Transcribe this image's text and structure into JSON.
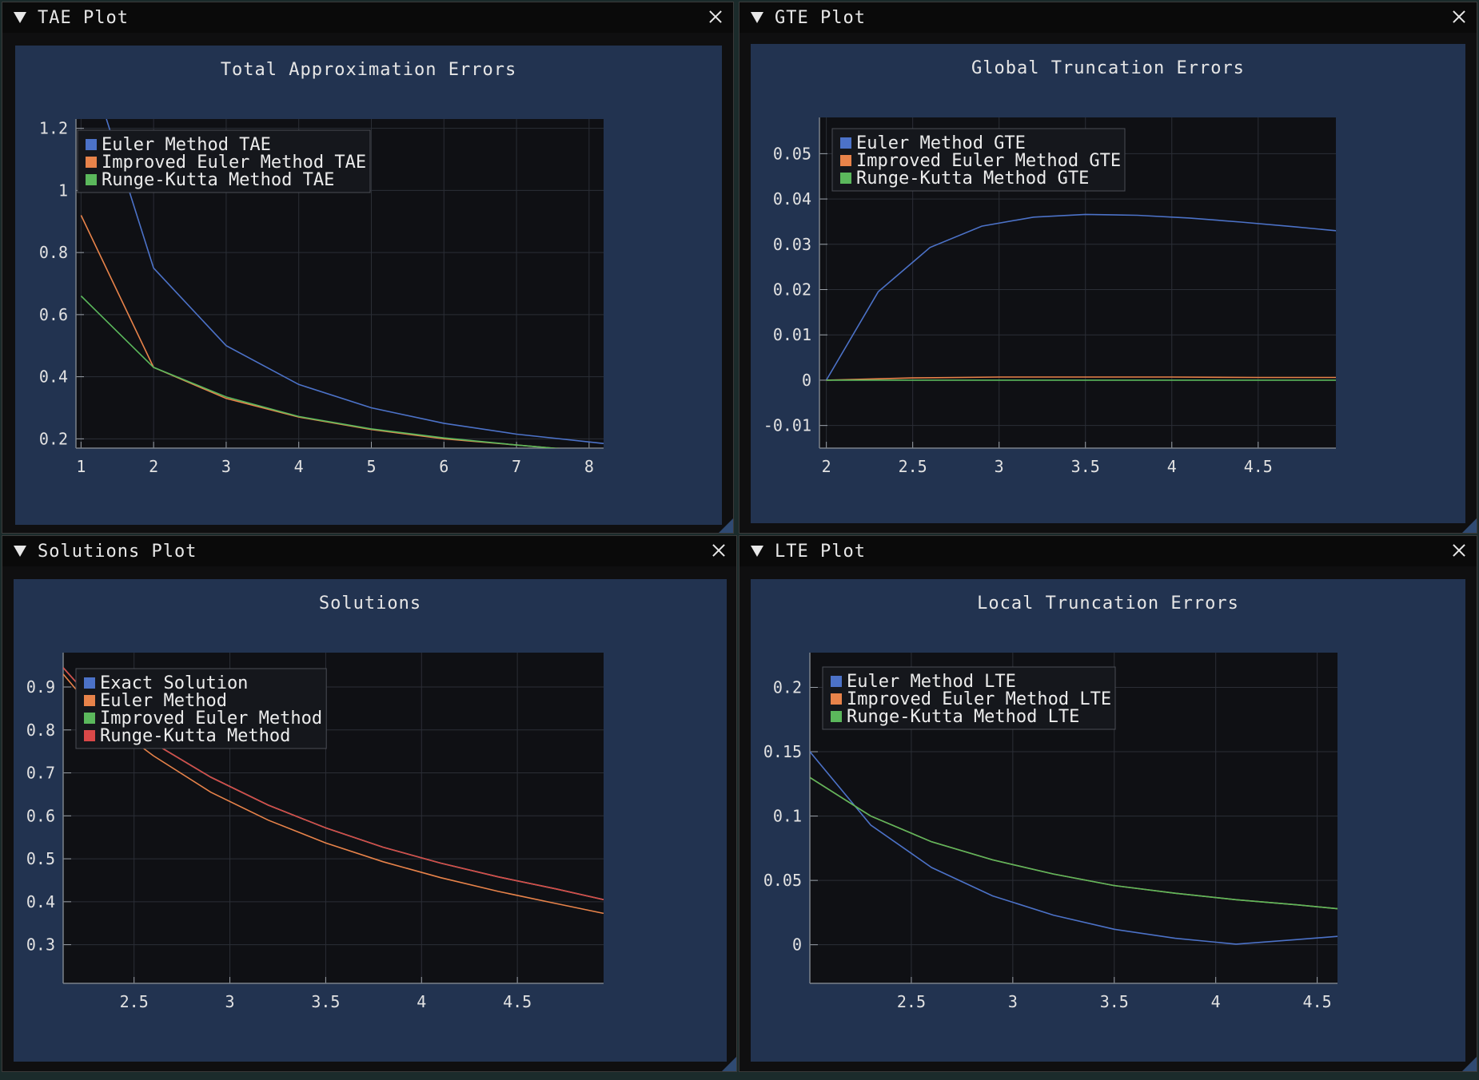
{
  "windows": [
    {
      "id": "tae",
      "title": "TAE Plot",
      "chart": {
        "type": "line",
        "title": "Total Approximation Errors",
        "xlim": [
          0.93,
          8.2
        ],
        "ylim": [
          0.17,
          1.23
        ],
        "xticks": [
          1,
          2,
          3,
          4,
          5,
          6,
          7,
          8
        ],
        "xtick_labels": [
          "1",
          "2",
          "3",
          "4",
          "5",
          "6",
          "7",
          "8"
        ],
        "yticks": [
          0.2,
          0.4,
          0.6,
          0.8,
          1,
          1.2
        ],
        "ytick_labels": [
          "0.2",
          "0.4",
          "0.6",
          "0.8",
          "1",
          "1.2"
        ],
        "legend": "top-left",
        "series": [
          {
            "name": "Euler Method TAE",
            "color": "#4c72c8",
            "x": [
              1.35,
              2,
              3,
              4,
              5,
              6,
              7,
              8.2
            ],
            "y": [
              1.23,
              0.75,
              0.5,
              0.375,
              0.3,
              0.25,
              0.215,
              0.185
            ]
          },
          {
            "name": "Improved Euler Method TAE",
            "color": "#e8834a",
            "x": [
              1,
              2,
              3,
              4,
              5,
              6,
              7,
              8
            ],
            "y": [
              0.92,
              0.43,
              0.33,
              0.27,
              0.23,
              0.2,
              0.18,
              0.16
            ]
          },
          {
            "name": "Runge-Kutta Method TAE",
            "color": "#5bb85c",
            "x": [
              1,
              2,
              3,
              4,
              5,
              6,
              7,
              8
            ],
            "y": [
              0.66,
              0.43,
              0.335,
              0.272,
              0.232,
              0.203,
              0.18,
              0.16
            ]
          }
        ]
      }
    },
    {
      "id": "gte",
      "title": "GTE Plot",
      "chart": {
        "type": "line",
        "title": "Global Truncation Errors",
        "xlim": [
          1.96,
          4.95
        ],
        "ylim": [
          -0.015,
          0.058
        ],
        "xticks": [
          2,
          2.5,
          3,
          3.5,
          4,
          4.5
        ],
        "xtick_labels": [
          "2",
          "2.5",
          "3",
          "3.5",
          "4",
          "4.5"
        ],
        "yticks": [
          -0.01,
          0,
          0.01,
          0.02,
          0.03,
          0.04,
          0.05
        ],
        "ytick_labels": [
          "-0.01",
          "0",
          "0.01",
          "0.02",
          "0.03",
          "0.04",
          "0.05"
        ],
        "legend": "top-left",
        "series": [
          {
            "name": "Euler Method GTE",
            "color": "#4c72c8",
            "x": [
              2,
              2.3,
              2.6,
              2.9,
              3.2,
              3.5,
              3.8,
              4.1,
              4.4,
              4.7,
              4.95
            ],
            "y": [
              0,
              0.0195,
              0.0293,
              0.034,
              0.036,
              0.0366,
              0.0364,
              0.0358,
              0.0349,
              0.0339,
              0.033
            ]
          },
          {
            "name": "Improved Euler Method GTE",
            "color": "#e8834a",
            "x": [
              2,
              2.5,
              3,
              3.5,
              4,
              4.5,
              4.95
            ],
            "y": [
              0,
              0.0005,
              0.0007,
              0.0007,
              0.0007,
              0.0006,
              0.0006
            ]
          },
          {
            "name": "Runge-Kutta Method GTE",
            "color": "#5bb85c",
            "x": [
              2,
              2.5,
              3,
              3.5,
              4,
              4.5,
              4.95
            ],
            "y": [
              0,
              0,
              0,
              0,
              0,
              0,
              0
            ]
          }
        ]
      }
    },
    {
      "id": "sol",
      "title": "Solutions Plot",
      "chart": {
        "type": "line",
        "title": "Solutions",
        "xlim": [
          2.13,
          4.95
        ],
        "ylim": [
          0.21,
          0.98
        ],
        "xticks": [
          2.5,
          3,
          3.5,
          4,
          4.5
        ],
        "xtick_labels": [
          "2.5",
          "3",
          "3.5",
          "4",
          "4.5"
        ],
        "yticks": [
          0.3,
          0.4,
          0.5,
          0.6,
          0.7,
          0.8,
          0.9
        ],
        "ytick_labels": [
          "0.3",
          "0.4",
          "0.5",
          "0.6",
          "0.7",
          "0.8",
          "0.9"
        ],
        "legend": "top-left",
        "series": [
          {
            "name": "Exact Solution",
            "color": "#4c72c8",
            "x": [
              2.13,
              2.3,
              2.6,
              2.9,
              3.2,
              3.5,
              3.8,
              4.1,
              4.4,
              4.7,
              4.95
            ],
            "y": [
              0.945,
              0.86,
              0.77,
              0.69,
              0.625,
              0.572,
              0.527,
              0.49,
              0.458,
              0.43,
              0.405
            ]
          },
          {
            "name": "Euler Method",
            "color": "#e8834a",
            "x": [
              2.13,
              2.3,
              2.6,
              2.9,
              3.2,
              3.5,
              3.8,
              4.1,
              4.4,
              4.7,
              4.95
            ],
            "y": [
              0.93,
              0.84,
              0.74,
              0.655,
              0.59,
              0.537,
              0.493,
              0.456,
              0.424,
              0.396,
              0.373
            ]
          },
          {
            "name": "Improved Euler Method",
            "color": "#5bb85c",
            "x": [
              2.13,
              2.3,
              2.6,
              2.9,
              3.2,
              3.5,
              3.8,
              4.1,
              4.4,
              4.7,
              4.95
            ],
            "y": [
              0.945,
              0.86,
              0.77,
              0.69,
              0.625,
              0.572,
              0.527,
              0.49,
              0.458,
              0.43,
              0.405
            ]
          },
          {
            "name": "Runge-Kutta Method",
            "color": "#d94848",
            "x": [
              2.13,
              2.3,
              2.6,
              2.9,
              3.2,
              3.5,
              3.8,
              4.1,
              4.4,
              4.7,
              4.95
            ],
            "y": [
              0.945,
              0.86,
              0.77,
              0.69,
              0.625,
              0.572,
              0.527,
              0.49,
              0.458,
              0.43,
              0.405
            ]
          }
        ]
      }
    },
    {
      "id": "lte",
      "title": "LTE Plot",
      "chart": {
        "type": "line",
        "title": "Local Truncation Errors",
        "xlim": [
          2.0,
          4.6
        ],
        "ylim": [
          -0.03,
          0.227
        ],
        "xticks": [
          2.5,
          3,
          3.5,
          4,
          4.5
        ],
        "xtick_labels": [
          "2.5",
          "3",
          "3.5",
          "4",
          "4.5"
        ],
        "yticks": [
          0,
          0.05,
          0.1,
          0.15,
          0.2
        ],
        "ytick_labels": [
          "0",
          "0.05",
          "0.1",
          "0.15",
          "0.2"
        ],
        "legend": "top-left",
        "series": [
          {
            "name": "Euler Method LTE",
            "color": "#4c72c8",
            "x": [
              2.0,
              2.3,
              2.6,
              2.9,
              3.2,
              3.5,
              3.8,
              4.1,
              4.4,
              4.6
            ],
            "y": [
              0.15,
              0.093,
              0.06,
              0.038,
              0.023,
              0.012,
              0.005,
              0.0005,
              0.004,
              0.0065
            ]
          },
          {
            "name": "Improved Euler Method LTE",
            "color": "#e8834a",
            "x": [
              2.0,
              2.3,
              2.6,
              2.9,
              3.2,
              3.5,
              3.8,
              4.1,
              4.4,
              4.6
            ],
            "y": [
              0.13,
              0.1,
              0.08,
              0.066,
              0.055,
              0.046,
              0.04,
              0.035,
              0.031,
              0.028
            ]
          },
          {
            "name": "Runge-Kutta Method LTE",
            "color": "#5bb85c",
            "x": [
              2.0,
              2.3,
              2.6,
              2.9,
              3.2,
              3.5,
              3.8,
              4.1,
              4.4,
              4.6
            ],
            "y": [
              0.13,
              0.1,
              0.08,
              0.066,
              0.055,
              0.046,
              0.04,
              0.035,
              0.031,
              0.028
            ]
          }
        ]
      }
    }
  ]
}
